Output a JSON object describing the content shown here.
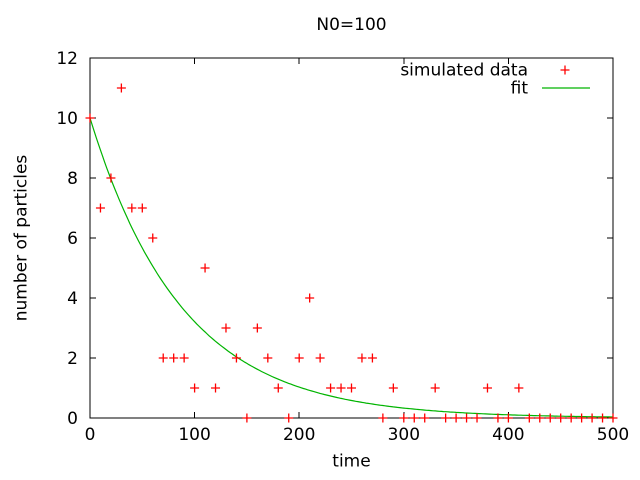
{
  "title": "N0=100",
  "axes": {
    "xlabel": "time",
    "ylabel": "number of particles"
  },
  "legend": {
    "entries": [
      {
        "label": "simulated data",
        "sample": "plus-marker",
        "color": "#ff0000"
      },
      {
        "label": "fit",
        "sample": "line",
        "color": "#00b400"
      }
    ]
  },
  "chart_data": {
    "type": "scatter",
    "title": "N0=100",
    "xlabel": "time",
    "ylabel": "number of particles",
    "xlim": [
      0,
      500
    ],
    "ylim": [
      0,
      12
    ],
    "x_ticks": [
      0,
      100,
      200,
      300,
      400,
      500
    ],
    "y_ticks": [
      0,
      2,
      4,
      6,
      8,
      10,
      12
    ],
    "grid": false,
    "legend_position": "top-right-inside",
    "frame_color": "#000000",
    "series": [
      {
        "name": "simulated data",
        "type": "scatter",
        "marker": "plus",
        "color": "#ff0000",
        "x": [
          0,
          10,
          20,
          30,
          40,
          50,
          60,
          70,
          80,
          90,
          100,
          110,
          120,
          130,
          140,
          150,
          160,
          170,
          180,
          190,
          200,
          210,
          220,
          230,
          240,
          250,
          260,
          270,
          280,
          290,
          300,
          310,
          320,
          330,
          340,
          350,
          360,
          370,
          380,
          390,
          400,
          410,
          420,
          430,
          440,
          450,
          460,
          470,
          480,
          490,
          500
        ],
        "y": [
          10,
          7,
          8,
          11,
          7,
          7,
          6,
          2,
          2,
          2,
          1,
          5,
          1,
          3,
          2,
          0,
          3,
          2,
          1,
          0,
          2,
          4,
          2,
          1,
          1,
          1,
          2,
          2,
          0,
          1,
          0,
          0,
          0,
          1,
          0,
          0,
          0,
          0,
          1,
          0,
          0,
          1,
          0,
          0,
          0,
          0,
          0,
          0,
          0,
          0,
          0
        ]
      },
      {
        "name": "fit",
        "type": "line",
        "color": "#00b400",
        "model": "N(t) = amplitude * exp(-t/tau)",
        "params": {
          "amplitude": 10,
          "tau": 88
        }
      }
    ]
  }
}
